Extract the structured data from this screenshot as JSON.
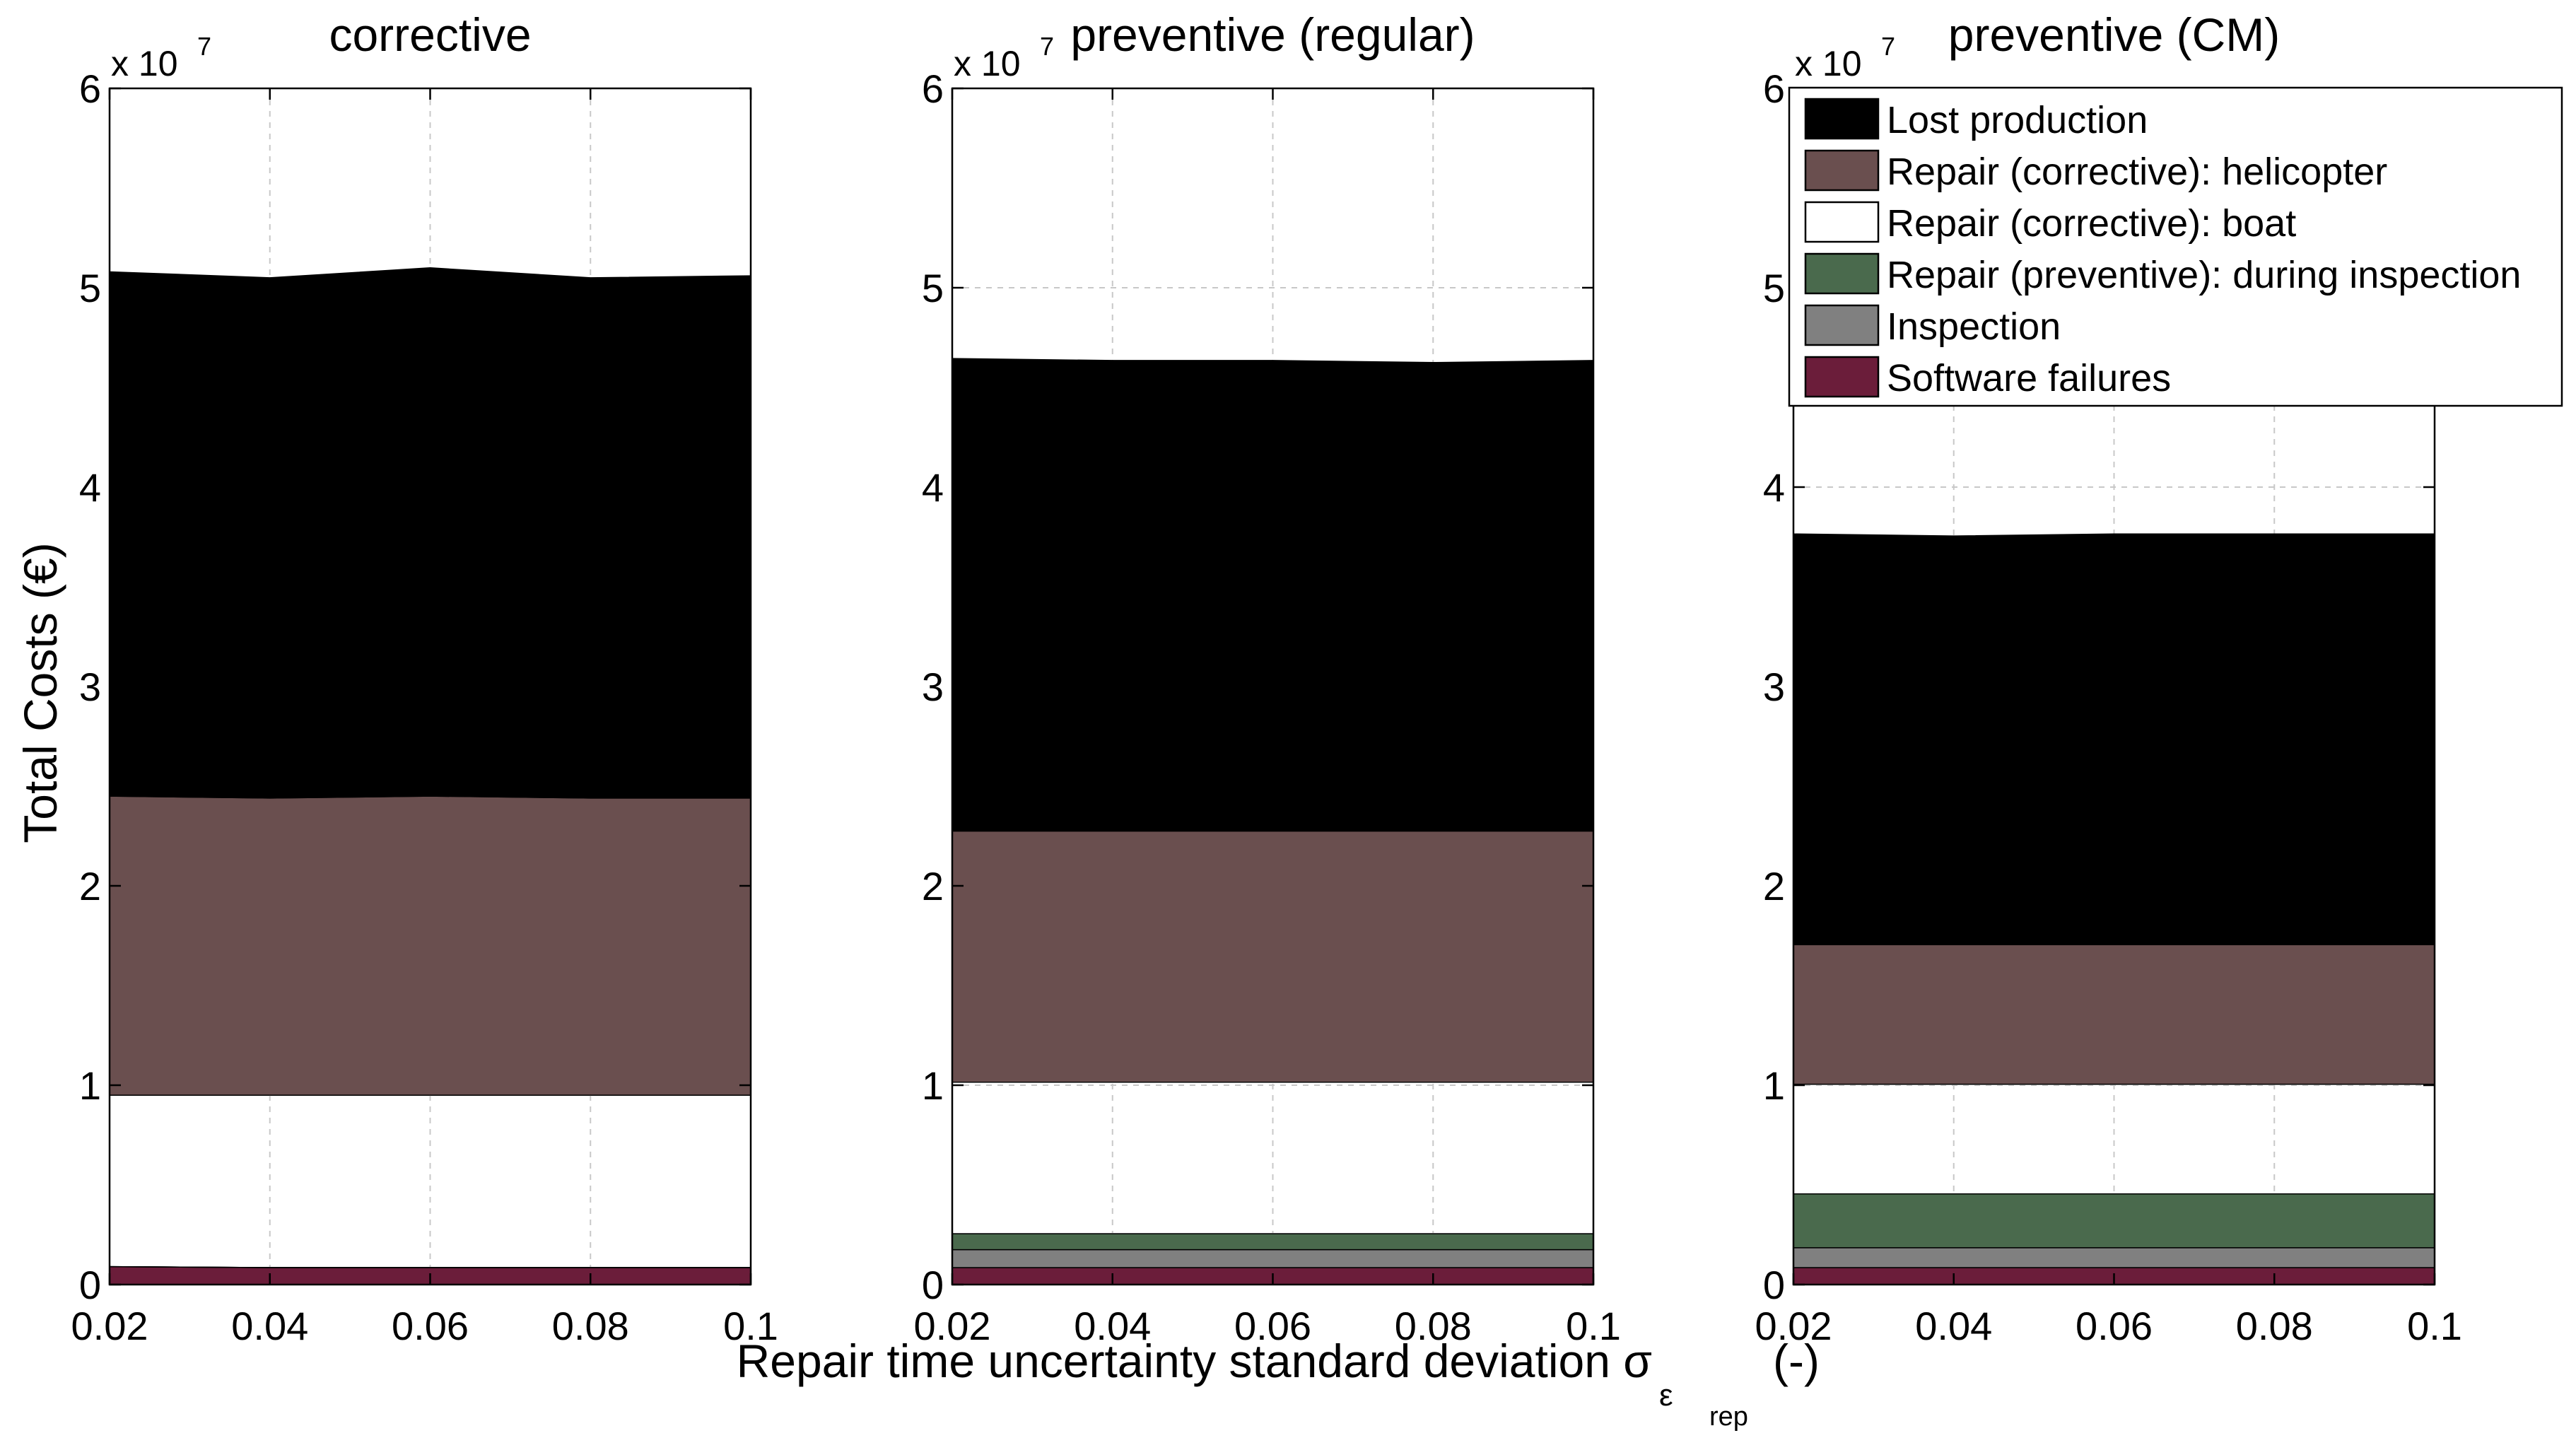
{
  "figure": {
    "ylabel": "Total Costs (€)",
    "xlabel_main": "Repair time uncertainty standard deviation σ",
    "xlabel_sub": "ε",
    "xlabel_subsub": "rep",
    "xlabel_units": "(-)",
    "exponent_base": "x 10",
    "exponent_power": "7"
  },
  "legend": [
    {
      "label": "Lost production",
      "color": "#000000"
    },
    {
      "label": "Repair (corrective): helicopter",
      "color": "#6a4f4f"
    },
    {
      "label": "Repair (corrective): boat",
      "color": "#ffffff"
    },
    {
      "label": "Repair (preventive): during inspection",
      "color": "#4a6a4d"
    },
    {
      "label": "Inspection",
      "color": "#808080"
    },
    {
      "label": "Software failures",
      "color": "#6b1d3a"
    }
  ],
  "chart_data": [
    {
      "type": "area",
      "stacked": true,
      "title": "corrective",
      "x": [
        0.02,
        0.04,
        0.06,
        0.08,
        0.1
      ],
      "xticks": [
        "0.02",
        "0.04",
        "0.06",
        "0.08",
        "0.1"
      ],
      "yticks": [
        "0",
        "1",
        "2",
        "3",
        "4",
        "5",
        "6"
      ],
      "ylim": [
        0,
        60000000
      ],
      "xlim": [
        0.02,
        0.1
      ],
      "grid": true,
      "series": [
        {
          "name": "Software failures",
          "values": [
            900000,
            850000,
            850000,
            850000,
            850000
          ]
        },
        {
          "name": "Inspection",
          "values": [
            0,
            0,
            0,
            0,
            0
          ]
        },
        {
          "name": "Repair (preventive): during inspection",
          "values": [
            0,
            0,
            0,
            0,
            0
          ]
        },
        {
          "name": "Repair (corrective): boat",
          "values": [
            8600000,
            8650000,
            8650000,
            8650000,
            8650000
          ]
        },
        {
          "name": "Repair (corrective): helicopter",
          "values": [
            15000000,
            14900000,
            15000000,
            14900000,
            14900000
          ]
        },
        {
          "name": "Lost production",
          "values": [
            26300000,
            26100000,
            26500000,
            26100000,
            26200000
          ]
        }
      ]
    },
    {
      "type": "area",
      "stacked": true,
      "title": "preventive (regular)",
      "x": [
        0.02,
        0.04,
        0.06,
        0.08,
        0.1
      ],
      "xticks": [
        "0.02",
        "0.04",
        "0.06",
        "0.08",
        "0.1"
      ],
      "yticks": [
        "0",
        "1",
        "2",
        "3",
        "4",
        "5",
        "6"
      ],
      "ylim": [
        0,
        60000000
      ],
      "xlim": [
        0.02,
        0.1
      ],
      "grid": true,
      "series": [
        {
          "name": "Software failures",
          "values": [
            850000,
            850000,
            850000,
            850000,
            850000
          ]
        },
        {
          "name": "Inspection",
          "values": [
            900000,
            900000,
            900000,
            900000,
            900000
          ]
        },
        {
          "name": "Repair (preventive): during inspection",
          "values": [
            800000,
            800000,
            800000,
            800000,
            800000
          ]
        },
        {
          "name": "Repair (corrective): boat",
          "values": [
            7600000,
            7600000,
            7600000,
            7600000,
            7600000
          ]
        },
        {
          "name": "Repair (corrective): helicopter",
          "values": [
            12600000,
            12600000,
            12600000,
            12600000,
            12600000
          ]
        },
        {
          "name": "Lost production",
          "values": [
            23700000,
            23600000,
            23600000,
            23500000,
            23600000
          ]
        }
      ]
    },
    {
      "type": "area",
      "stacked": true,
      "title": "preventive (CM)",
      "x": [
        0.02,
        0.04,
        0.06,
        0.08,
        0.1
      ],
      "xticks": [
        "0.02",
        "0.04",
        "0.06",
        "0.08",
        "0.1"
      ],
      "yticks": [
        "0",
        "1",
        "2",
        "3",
        "4",
        "5",
        "6"
      ],
      "ylim": [
        0,
        60000000
      ],
      "xlim": [
        0.02,
        0.1
      ],
      "grid": true,
      "series": [
        {
          "name": "Software failures",
          "values": [
            850000,
            850000,
            850000,
            850000,
            850000
          ]
        },
        {
          "name": "Inspection",
          "values": [
            1000000,
            1000000,
            1000000,
            1000000,
            1000000
          ]
        },
        {
          "name": "Repair (preventive): during inspection",
          "values": [
            2700000,
            2700000,
            2700000,
            2700000,
            2700000
          ]
        },
        {
          "name": "Repair (corrective): boat",
          "values": [
            5500000,
            5500000,
            5500000,
            5500000,
            5500000
          ]
        },
        {
          "name": "Repair (corrective): helicopter",
          "values": [
            7000000,
            7000000,
            7000000,
            7000000,
            7000000
          ]
        },
        {
          "name": "Lost production",
          "values": [
            20600000,
            20500000,
            20600000,
            20600000,
            20600000
          ]
        }
      ]
    }
  ]
}
